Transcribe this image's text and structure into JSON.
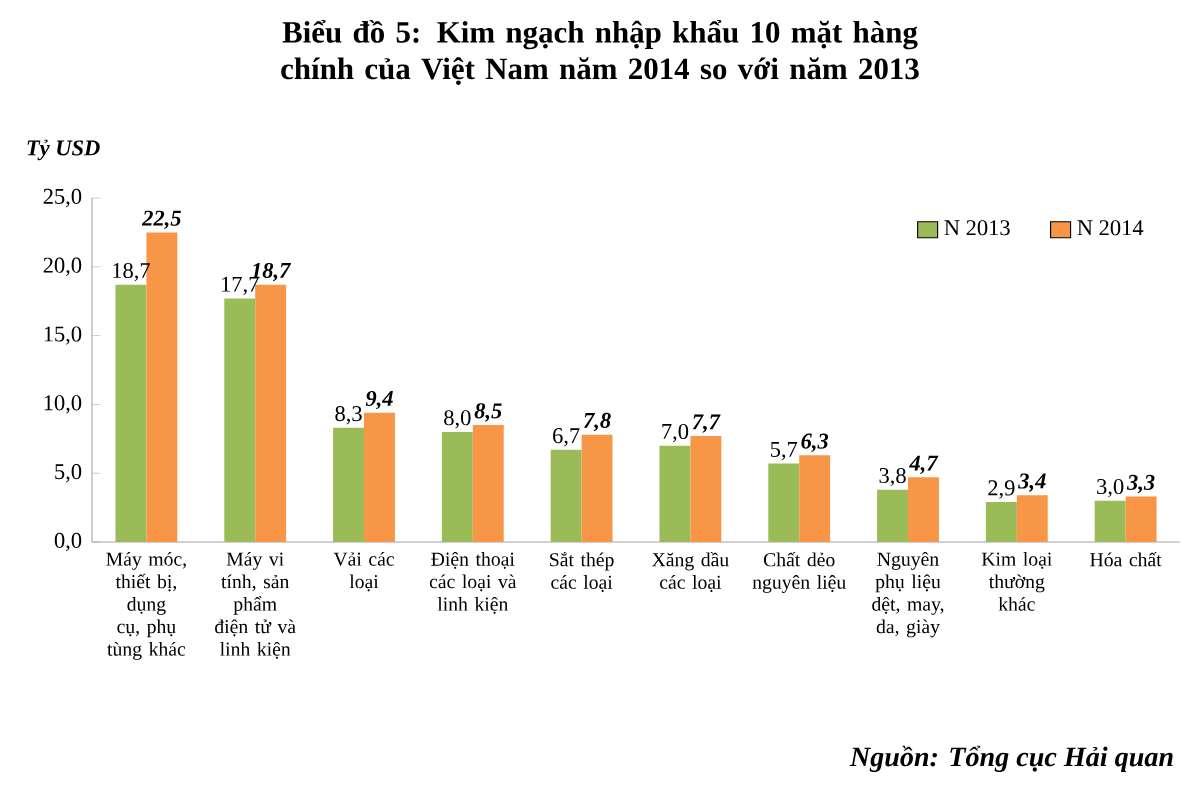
{
  "chart_data": {
    "type": "bar",
    "title": "Biểu đồ 5: Kim ngạch nhập khẩu 10 mặt hàng chính của Việt Nam năm 2014 so với năm 2013",
    "ylabel": "Tỷ USD",
    "categories": [
      "Máy móc, thiết bị, dụng cụ, phụ tùng khác",
      "Máy vi tính, sản phẩm điện tử và linh kiện",
      "Vải các loại",
      "Điện thoại các loại và linh kiện",
      "Sắt thép các loại",
      "Xăng dầu các loại",
      "Chất dẻo nguyên liệu",
      "Nguyên phụ liệu dệt, may, da, giày",
      "Kim loại thường khác",
      "Hóa chất"
    ],
    "series": [
      {
        "name": "N 2013",
        "color": "#9bbb59",
        "values": [
          18.7,
          17.7,
          8.3,
          8.0,
          6.7,
          7.0,
          5.7,
          3.8,
          2.9,
          3.0
        ],
        "value_labels": [
          "18,7",
          "17,7",
          "8,3",
          "8,0",
          "6,7",
          "7,0",
          "5,7",
          "3,8",
          "2,9",
          "3,0"
        ]
      },
      {
        "name": "N 2014",
        "color": "#f79646",
        "values": [
          22.5,
          18.7,
          9.4,
          8.5,
          7.8,
          7.7,
          6.3,
          4.7,
          3.4,
          3.3
        ],
        "value_labels": [
          "22,5",
          "18,7",
          "9,4",
          "8,5",
          "7,8",
          "7,7",
          "6,3",
          "4,7",
          "3,4",
          "3,3"
        ]
      }
    ],
    "ylim": [
      0,
      25
    ],
    "yticks": [
      {
        "value": 0,
        "label": "0,0"
      },
      {
        "value": 5,
        "label": "5,0"
      },
      {
        "value": 10,
        "label": "10,0"
      },
      {
        "value": 15,
        "label": "15,0"
      },
      {
        "value": 20,
        "label": "20,0"
      },
      {
        "value": 25,
        "label": "25,0"
      }
    ],
    "legend": "top right",
    "annotations": [
      "Nguồn: Tổng cục Hải quan"
    ]
  }
}
